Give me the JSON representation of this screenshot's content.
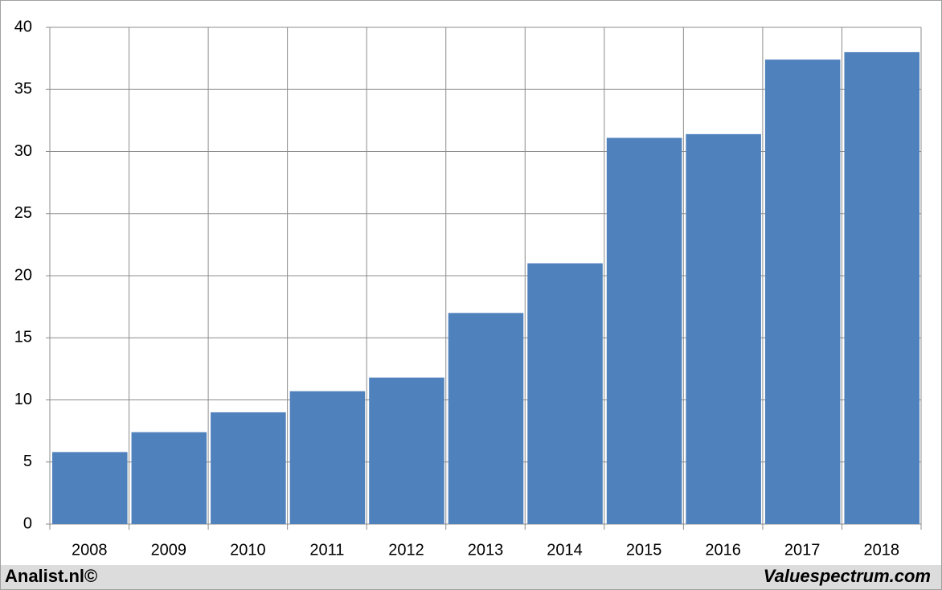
{
  "chart_data": {
    "type": "bar",
    "categories": [
      "2008",
      "2009",
      "2010",
      "2011",
      "2012",
      "2013",
      "2014",
      "2015",
      "2016",
      "2017",
      "2018"
    ],
    "values": [
      5.8,
      7.4,
      9.0,
      10.7,
      11.8,
      17.0,
      21.0,
      31.1,
      31.4,
      37.4,
      38.0
    ],
    "color": "#4f81bd",
    "ylim": [
      0,
      40
    ],
    "yticks": [
      0,
      5,
      10,
      15,
      20,
      25,
      30,
      35,
      40
    ],
    "grid": true,
    "footer_left": "Analist.nl©",
    "footer_right": "Valuespectrum.com"
  }
}
